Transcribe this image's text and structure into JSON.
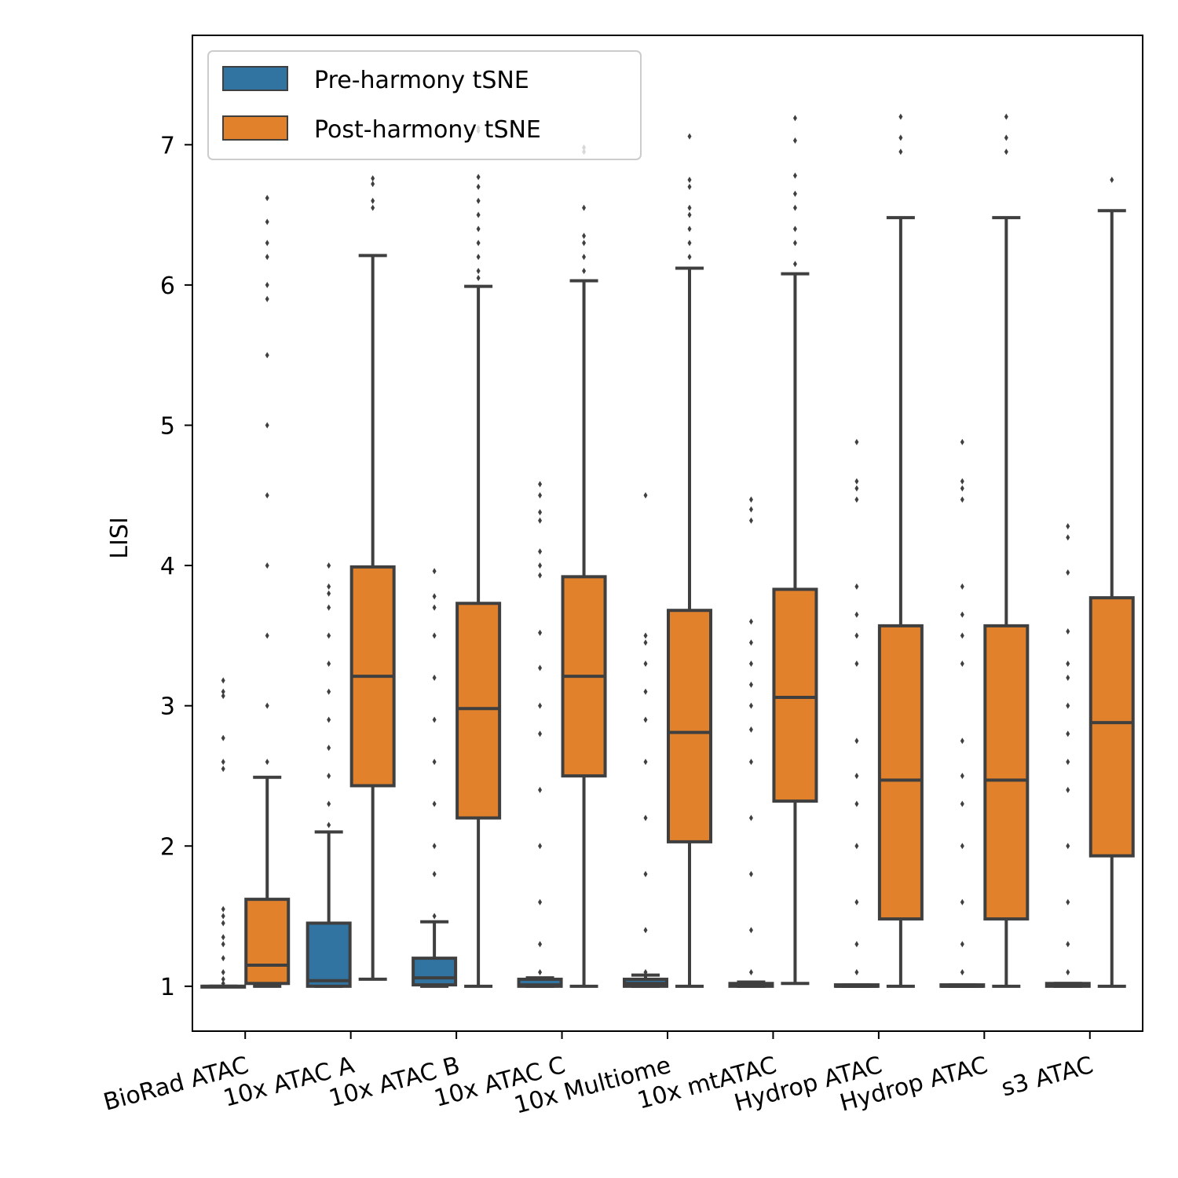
{
  "chart_data": {
    "type": "box",
    "ylabel": "LISI",
    "ylim": [
      0.68,
      7.78
    ],
    "yticks": [
      1,
      2,
      3,
      4,
      5,
      6,
      7
    ],
    "grid": false,
    "legend": {
      "position": "top-left",
      "entries": [
        {
          "label": "Pre-harmony tSNE",
          "color": "#3274a1"
        },
        {
          "label": "Post-harmony tSNE",
          "color": "#e1812c"
        }
      ]
    },
    "categories": [
      "BioRad ATAC",
      "10x ATAC A",
      "10x ATAC B",
      "10x ATAC C",
      "10x Multiome",
      "10x mtATAC",
      "Hydrop ATAC",
      "Hydrop ATAC",
      "s3 ATAC"
    ],
    "series": [
      {
        "name": "Pre-harmony tSNE",
        "color": "#3274a1",
        "boxes": [
          {
            "whislo": 1.0,
            "q1": 1.0,
            "med": 1.0,
            "q3": 1.0,
            "whishi": 1.0,
            "fliers": [
              1.02,
              1.05,
              1.1,
              1.2,
              1.3,
              1.35,
              1.45,
              1.5,
              1.55,
              2.55,
              2.6,
              2.77,
              3.07,
              3.1,
              3.18
            ]
          },
          {
            "whislo": 1.0,
            "q1": 1.0,
            "med": 1.04,
            "q3": 1.45,
            "whishi": 2.1,
            "fliers": [
              2.15,
              2.3,
              2.5,
              2.7,
              2.9,
              3.1,
              3.3,
              3.5,
              3.7,
              3.8,
              3.85,
              4.0
            ]
          },
          {
            "whislo": 1.0,
            "q1": 1.01,
            "med": 1.06,
            "q3": 1.2,
            "whishi": 1.46,
            "fliers": [
              1.5,
              1.8,
              2.0,
              2.3,
              2.6,
              2.9,
              3.2,
              3.5,
              3.7,
              3.78,
              3.96
            ]
          },
          {
            "whislo": 1.0,
            "q1": 1.0,
            "med": 1.01,
            "q3": 1.05,
            "whishi": 1.06,
            "fliers": [
              1.1,
              1.3,
              1.6,
              2.0,
              2.4,
              2.8,
              3.0,
              3.27,
              3.52,
              3.93,
              4.0,
              4.1,
              4.32,
              4.38,
              4.5,
              4.58
            ]
          },
          {
            "whislo": 1.0,
            "q1": 1.0,
            "med": 1.02,
            "q3": 1.05,
            "whishi": 1.08,
            "fliers": [
              1.1,
              1.4,
              1.8,
              2.2,
              2.6,
              2.9,
              3.1,
              3.3,
              3.45,
              3.5,
              4.5
            ]
          },
          {
            "whislo": 1.0,
            "q1": 1.0,
            "med": 1.01,
            "q3": 1.02,
            "whishi": 1.03,
            "fliers": [
              1.1,
              1.4,
              1.8,
              2.2,
              2.6,
              2.83,
              3.0,
              3.15,
              3.3,
              3.45,
              3.6,
              4.32,
              4.4,
              4.47
            ]
          },
          {
            "whislo": 1.0,
            "q1": 1.0,
            "med": 1.0,
            "q3": 1.01,
            "whishi": 1.01,
            "fliers": [
              1.1,
              1.3,
              1.6,
              2.0,
              2.3,
              2.5,
              2.75,
              3.3,
              3.5,
              3.65,
              3.85,
              4.47,
              4.55,
              4.6,
              4.88
            ]
          },
          {
            "whislo": 1.0,
            "q1": 1.0,
            "med": 1.0,
            "q3": 1.01,
            "whishi": 1.01,
            "fliers": [
              1.1,
              1.3,
              1.6,
              2.0,
              2.3,
              2.5,
              2.75,
              3.3,
              3.5,
              3.65,
              3.85,
              4.47,
              4.55,
              4.6,
              4.88
            ]
          },
          {
            "whislo": 1.0,
            "q1": 1.0,
            "med": 1.01,
            "q3": 1.02,
            "whishi": 1.02,
            "fliers": [
              1.1,
              1.3,
              1.6,
              2.0,
              2.4,
              2.6,
              2.8,
              3.0,
              3.2,
              3.3,
              3.53,
              3.95,
              4.2,
              4.28
            ]
          }
        ]
      },
      {
        "name": "Post-harmony tSNE",
        "color": "#e1812c",
        "boxes": [
          {
            "whislo": 1.0,
            "q1": 1.02,
            "med": 1.15,
            "q3": 1.62,
            "whishi": 2.49,
            "fliers": [
              2.6,
              3.0,
              3.5,
              4.0,
              4.5,
              5.0,
              5.5,
              5.9,
              6.0,
              6.2,
              6.3,
              6.45,
              6.62
            ]
          },
          {
            "whislo": 1.05,
            "q1": 2.43,
            "med": 3.21,
            "q3": 3.99,
            "whishi": 6.21,
            "fliers": [
              6.55,
              6.6,
              6.72,
              6.76
            ]
          },
          {
            "whislo": 1.0,
            "q1": 2.2,
            "med": 2.98,
            "q3": 3.73,
            "whishi": 5.99,
            "fliers": [
              6.05,
              6.1,
              6.2,
              6.3,
              6.4,
              6.5,
              6.6,
              6.7,
              6.77,
              7.1,
              7.12
            ]
          },
          {
            "whislo": 1.0,
            "q1": 2.5,
            "med": 3.21,
            "q3": 3.92,
            "whishi": 6.03,
            "fliers": [
              6.1,
              6.2,
              6.3,
              6.35,
              6.55,
              6.95,
              6.98
            ]
          },
          {
            "whislo": 1.0,
            "q1": 2.03,
            "med": 2.81,
            "q3": 3.68,
            "whishi": 6.12,
            "fliers": [
              6.2,
              6.3,
              6.4,
              6.5,
              6.55,
              6.7,
              6.75,
              7.06
            ]
          },
          {
            "whislo": 1.02,
            "q1": 2.32,
            "med": 3.06,
            "q3": 3.83,
            "whishi": 6.08,
            "fliers": [
              6.15,
              6.3,
              6.4,
              6.55,
              6.65,
              6.78,
              7.03,
              7.19
            ]
          },
          {
            "whislo": 1.0,
            "q1": 1.48,
            "med": 2.47,
            "q3": 3.57,
            "whishi": 6.48,
            "fliers": [
              6.95,
              7.05,
              7.2
            ]
          },
          {
            "whislo": 1.0,
            "q1": 1.48,
            "med": 2.47,
            "q3": 3.57,
            "whishi": 6.48,
            "fliers": [
              6.95,
              7.05,
              7.2
            ]
          },
          {
            "whislo": 1.0,
            "q1": 1.93,
            "med": 2.88,
            "q3": 3.77,
            "whishi": 6.53,
            "fliers": [
              6.75
            ]
          }
        ]
      }
    ]
  }
}
